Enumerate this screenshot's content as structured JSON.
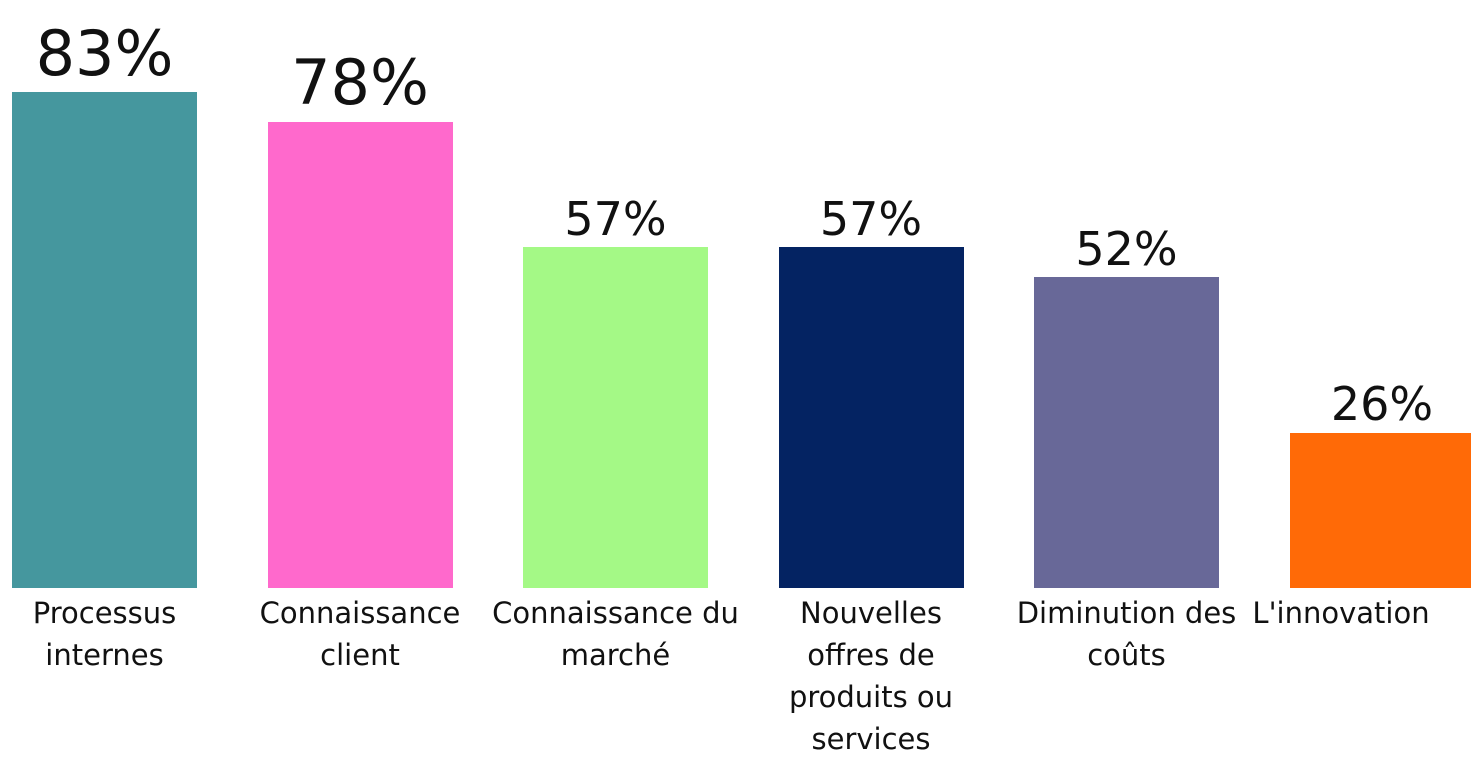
{
  "chart_data": {
    "type": "bar",
    "categories": [
      "Processus internes",
      "Connaissance client",
      "Connaissance du marché",
      "Nouvelles offres de produits ou services",
      "Diminution des coûts",
      "L'innovation"
    ],
    "values": [
      83,
      78,
      57,
      57,
      52,
      26
    ],
    "value_labels": [
      "83%",
      "78%",
      "57%",
      "57%",
      "52%",
      "26%"
    ],
    "colors": [
      "#45979e",
      "#ff69cc",
      "#a4f986",
      "#042362",
      "#686898",
      "#ff6a07"
    ]
  }
}
